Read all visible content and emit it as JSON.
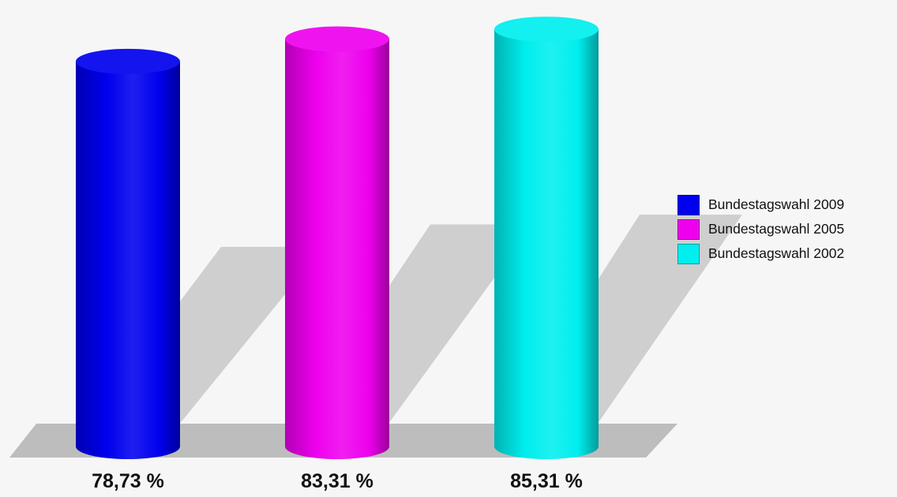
{
  "chart_data": {
    "type": "bar",
    "categories": [
      "Bundestagswahl 2009",
      "Bundestagswahl 2005",
      "Bundestagswahl 2002"
    ],
    "values": [
      78.73,
      83.31,
      85.31
    ],
    "value_labels": [
      "78,73 %",
      "83,31 %",
      "85,31 %"
    ],
    "colors": [
      "#0000ee",
      "#ee00ee",
      "#00eeee"
    ],
    "legend": [
      {
        "label": "Bundestagswahl 2009",
        "color": "#0000ee"
      },
      {
        "label": "Bundestagswahl 2005",
        "color": "#ee00ee"
      },
      {
        "label": "Bundestagswahl 2002",
        "color": "#00eeee"
      }
    ],
    "legend_position": "right",
    "style": "3d-cylinder",
    "title": "",
    "xlabel": "",
    "ylabel": "",
    "grid": false
  }
}
